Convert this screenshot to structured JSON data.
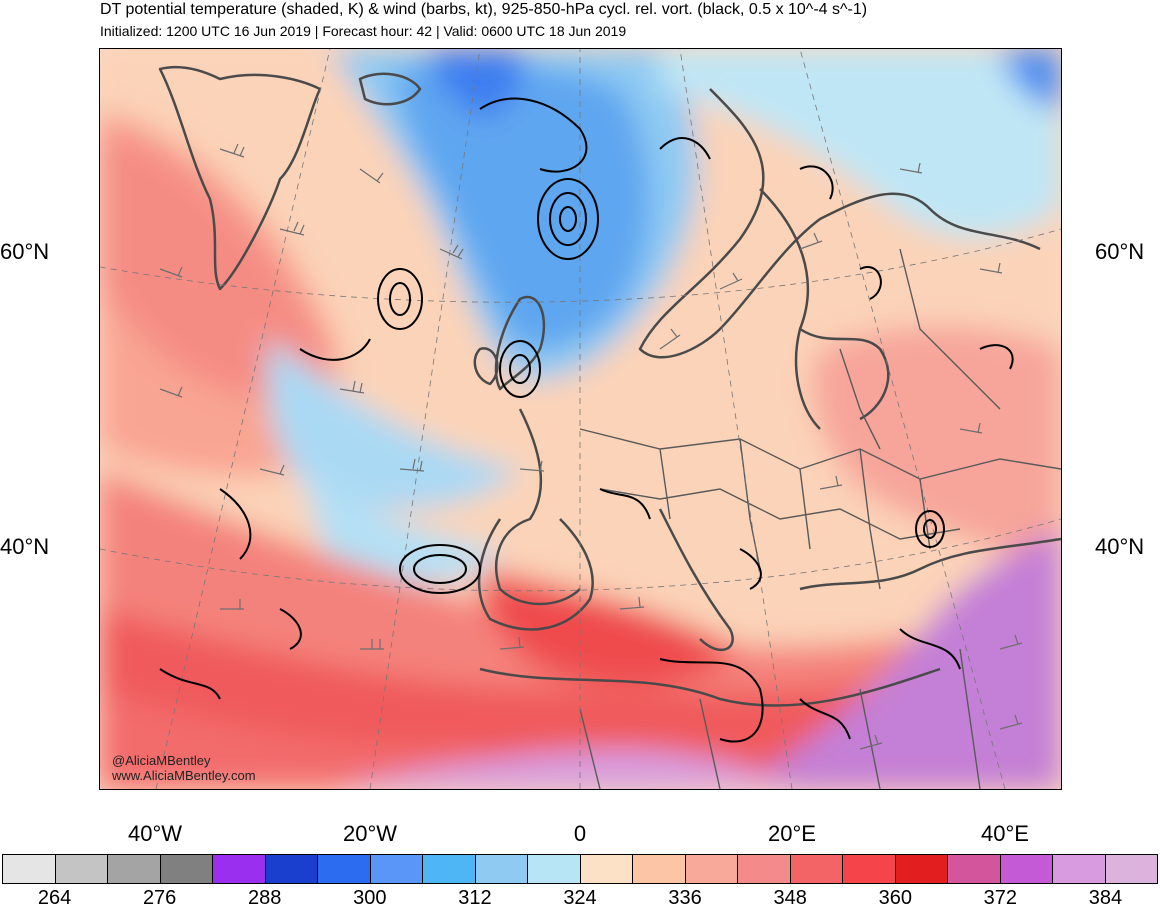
{
  "title": "DT potential temperature (shaded, K) & wind (barbs, kt), 925-850-hPa cycl. rel. vort. (black, 0.5 x 10^-4 s^-1)",
  "subtitle": "Initialized: 1200 UTC 16 Jun 2019 | Forecast hour: 42 | Valid: 0600 UTC 18 Jun 2019",
  "credit": {
    "handle": "@AliciaMBentley",
    "website": "www.AliciaMBentley.com"
  },
  "map": {
    "lat_labels_left": [
      "60°N",
      "40°N"
    ],
    "lat_labels_right": [
      "60°N",
      "40°N"
    ],
    "lon_labels": [
      "40°W",
      "20°W",
      "0",
      "20°E",
      "40°E"
    ],
    "region": "North Atlantic and Europe"
  },
  "colorbar": {
    "colors": [
      "#e5e5e5",
      "#c4c4c4",
      "#a4a4a4",
      "#808080",
      "#9b2ff0",
      "#1a3fce",
      "#2b6cf1",
      "#5a96f7",
      "#4fb6f5",
      "#8fcaf3",
      "#b8e5f6",
      "#fde1c6",
      "#fcc6a6",
      "#f9a99a",
      "#f48b8b",
      "#f26465",
      "#f5444a",
      "#e21e1e",
      "#d3559b",
      "#c45ad5",
      "#d89be0",
      "#dcb3dc"
    ],
    "labels": [
      "264",
      "276",
      "288",
      "300",
      "312",
      "324",
      "336",
      "348",
      "360",
      "372",
      "384"
    ]
  }
}
